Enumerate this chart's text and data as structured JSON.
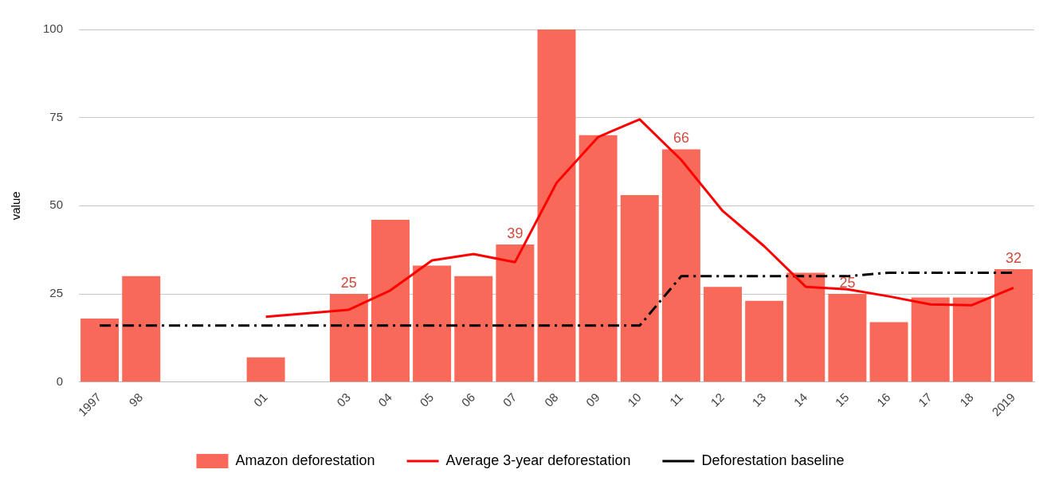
{
  "chart_data": {
    "type": "bar",
    "ylabel": "value",
    "categories": [
      "1997",
      "98",
      null,
      null,
      "01",
      null,
      "03",
      "04",
      "05",
      "06",
      "07",
      "08",
      "09",
      "10",
      "11",
      "12",
      "13",
      "14",
      "15",
      "16",
      "17",
      "18",
      "2019"
    ],
    "series": [
      {
        "name": "Amazon deforestation",
        "color": "#f8695a",
        "values": [
          18,
          30,
          null,
          null,
          7,
          null,
          25,
          46,
          33,
          30,
          39,
          100,
          70,
          53,
          66,
          27,
          23,
          31,
          25,
          17,
          24,
          24,
          32
        ],
        "value_labels": [
          null,
          null,
          null,
          null,
          null,
          null,
          "25",
          null,
          null,
          null,
          "39",
          null,
          null,
          null,
          "66",
          null,
          null,
          null,
          "25",
          null,
          null,
          null,
          "32"
        ]
      },
      {
        "name": "Average 3-year deforestation",
        "type": "line",
        "color": "#ff0000",
        "line_style": "solid",
        "values": [
          null,
          null,
          null,
          null,
          18.5,
          null,
          20.5,
          26,
          34.5,
          36.3,
          34,
          56.5,
          69.5,
          74.5,
          63,
          48.5,
          38.5,
          27,
          26.3,
          24.3,
          22,
          21.8,
          26.7
        ]
      },
      {
        "name": "Deforestation baseline",
        "type": "line",
        "color": "#000000",
        "line_style": "dashed",
        "values": [
          16,
          16,
          16,
          16,
          16,
          16,
          16,
          16,
          16,
          16,
          16,
          16,
          16,
          16,
          30,
          30,
          30,
          30,
          30,
          31,
          31,
          31,
          31
        ]
      }
    ],
    "ylim": [
      0,
      100
    ],
    "yticks": [
      0,
      25,
      50,
      75,
      100
    ],
    "grid": "y",
    "legend": "bottom",
    "marker": "none"
  }
}
